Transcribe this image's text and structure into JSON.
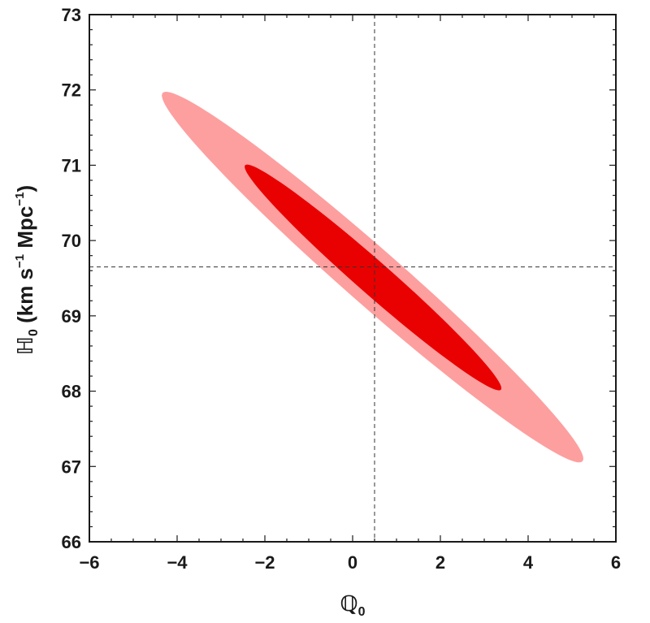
{
  "chart_data": {
    "type": "contour",
    "xlabel": {
      "symbol": "ℚ",
      "subscript": "0"
    },
    "ylabel": {
      "symbol": "ℍ",
      "subscript": "0",
      "units_open": " (km s",
      "units_sup1": "−1",
      "units_mid": " Mpc",
      "units_sup2": "−1",
      "units_close": ")"
    },
    "xlim": [
      -6,
      6
    ],
    "ylim": [
      66,
      73
    ],
    "xticks": [
      -6,
      -4,
      -2,
      0,
      2,
      4,
      6
    ],
    "yticks": [
      66,
      67,
      68,
      69,
      70,
      71,
      72,
      73
    ],
    "grid": false,
    "best_fit": {
      "x": 0.5,
      "y": 69.65
    },
    "contours": [
      {
        "level": "2-sigma",
        "color": "#fd9f9f",
        "endpoints": [
          [
            -4.33,
            71.96
          ],
          [
            5.24,
            67.07
          ]
        ],
        "half_width": 0.37
      },
      {
        "level": "1-sigma",
        "color": "#e90000",
        "endpoints": [
          [
            -2.45,
            71.0
          ],
          [
            3.38,
            68.02
          ]
        ],
        "half_width": 0.22
      }
    ],
    "colors": {
      "axis": "#1a1a1a",
      "reference_line": "#333333"
    }
  }
}
